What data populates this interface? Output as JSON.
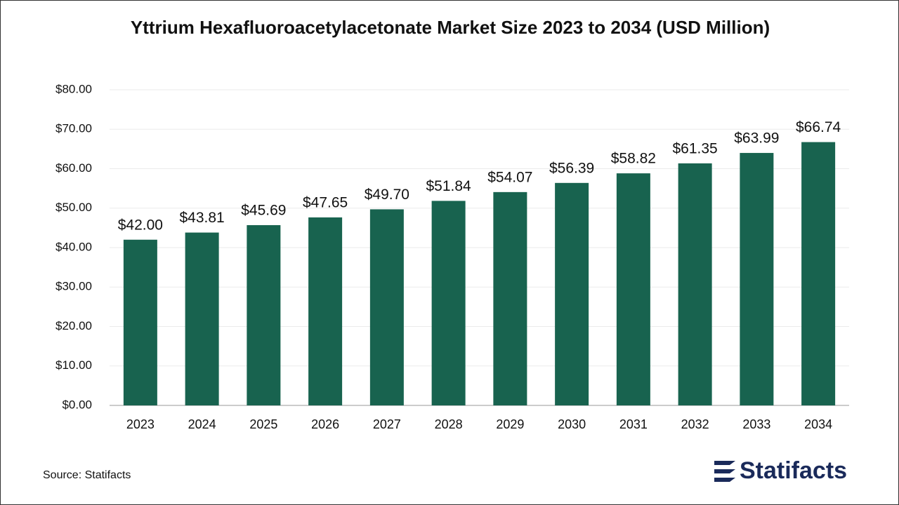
{
  "chart_data": {
    "type": "bar",
    "title": "Yttrium Hexafluoroacetylacetonate Market Size 2023 to 2034 (USD Million)",
    "categories": [
      "2023",
      "2024",
      "2025",
      "2026",
      "2027",
      "2028",
      "2029",
      "2030",
      "2031",
      "2032",
      "2033",
      "2034"
    ],
    "values": [
      42.0,
      43.81,
      45.69,
      47.65,
      49.7,
      51.84,
      54.07,
      56.39,
      58.82,
      61.35,
      63.99,
      66.74
    ],
    "value_labels": [
      "$42.00",
      "$43.81",
      "$45.69",
      "$47.65",
      "$49.70",
      "$51.84",
      "$54.07",
      "$56.39",
      "$58.82",
      "$61.35",
      "$63.99",
      "$66.74"
    ],
    "color": "#18634f",
    "ylim": [
      0,
      80
    ],
    "yticks": [
      {
        "value": 0,
        "label": "$0.00"
      },
      {
        "value": 10,
        "label": "$10.00"
      },
      {
        "value": 20,
        "label": "$20.00"
      },
      {
        "value": 30,
        "label": "$30.00"
      },
      {
        "value": 40,
        "label": "$40.00"
      },
      {
        "value": 50,
        "label": "$50.00"
      },
      {
        "value": 60,
        "label": "$60.00"
      },
      {
        "value": 70,
        "label": "$70.00"
      },
      {
        "value": 80,
        "label": "$80.00"
      }
    ],
    "grid": true,
    "source": "Source: Statifacts",
    "brand": "Statifacts"
  }
}
